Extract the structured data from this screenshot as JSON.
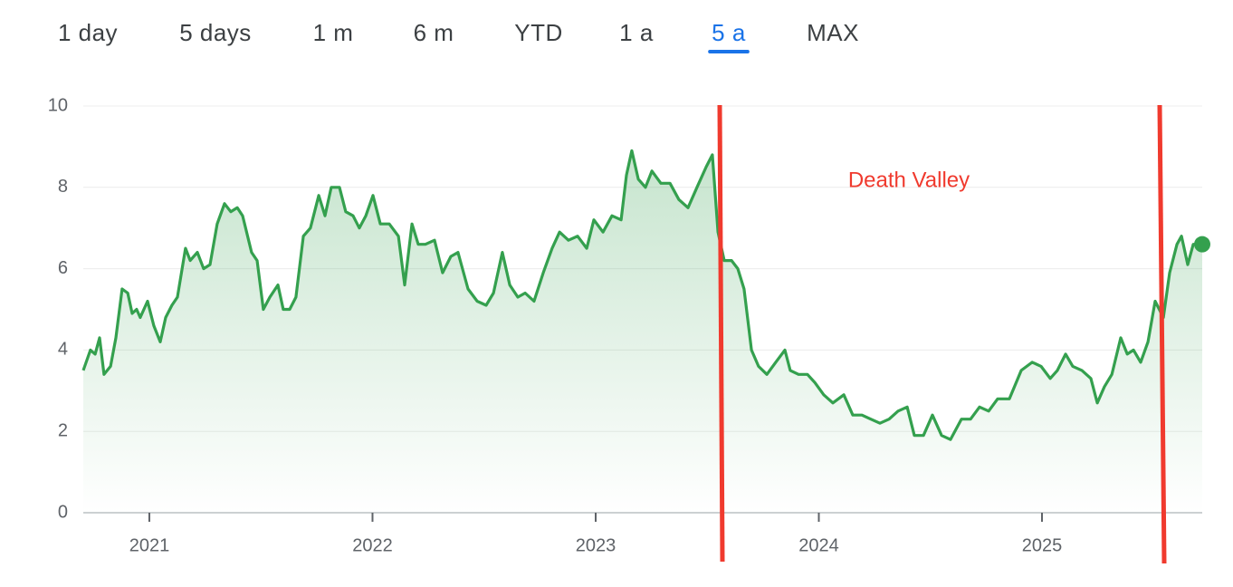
{
  "tabs": [
    "1 day",
    "5 days",
    "1 m",
    "6 m",
    "YTD",
    "1 a",
    "5 a",
    "MAX"
  ],
  "selected_tab": 6,
  "chart_data": {
    "type": "line",
    "annotation": "Death Valley",
    "color": "#34a04e",
    "xlim": [
      2020.704,
      2025.718
    ],
    "xticks": [
      2021,
      2022,
      2023,
      2024,
      2025
    ],
    "ylim": [
      0,
      10
    ],
    "yticks": [
      0,
      2,
      4,
      6,
      8,
      10
    ],
    "grid": true,
    "series": [
      {
        "x": [
          2020.704,
          2020.736,
          2020.757,
          2020.777,
          2020.797,
          2020.826,
          2020.85,
          2020.878,
          2020.903,
          2020.923,
          2020.943,
          2020.959,
          2020.992,
          2021.02,
          2021.049,
          2021.073,
          2021.101,
          2021.126,
          2021.162,
          2021.183,
          2021.215,
          2021.243,
          2021.272,
          2021.304,
          2021.337,
          2021.365,
          2021.394,
          2021.418,
          2021.458,
          2021.483,
          2021.511,
          2021.54,
          2021.576,
          2021.6,
          2021.629,
          2021.657,
          2021.69,
          2021.722,
          2021.759,
          2021.787,
          2021.815,
          2021.852,
          2021.88,
          2021.913,
          2021.941,
          2021.97,
          2022.002,
          2022.035,
          2022.075,
          2022.116,
          2022.144,
          2022.177,
          2022.205,
          2022.237,
          2022.278,
          2022.314,
          2022.351,
          2022.383,
          2022.428,
          2022.469,
          2022.509,
          2022.542,
          2022.582,
          2022.615,
          2022.651,
          2022.684,
          2022.724,
          2022.765,
          2022.805,
          2022.838,
          2022.878,
          2022.919,
          2022.96,
          2022.992,
          2023.033,
          2023.073,
          2023.114,
          2023.138,
          2023.162,
          2023.191,
          2023.223,
          2023.252,
          2023.292,
          2023.333,
          2023.373,
          2023.414,
          2023.454,
          2023.495,
          2023.523,
          2023.548,
          2023.576,
          2023.609,
          2023.637,
          2023.665,
          2023.698,
          2023.73,
          2023.767,
          2023.807,
          2023.848,
          2023.872,
          2023.909,
          2023.949,
          2023.982,
          2024.022,
          2024.063,
          2024.112,
          2024.152,
          2024.193,
          2024.233,
          2024.274,
          2024.315,
          2024.355,
          2024.396,
          2024.428,
          2024.469,
          2024.509,
          2024.55,
          2024.59,
          2024.639,
          2024.68,
          2024.72,
          2024.761,
          2024.801,
          2024.854,
          2024.907,
          2024.956,
          2024.996,
          2025.037,
          2025.069,
          2025.106,
          2025.138,
          2025.179,
          2025.219,
          2025.248,
          2025.28,
          2025.313,
          2025.353,
          2025.382,
          2025.41,
          2025.442,
          2025.475,
          2025.507,
          2025.544,
          2025.572,
          2025.605,
          2025.625,
          2025.653,
          2025.678,
          2025.718
        ],
        "values": [
          3.5,
          4.0,
          3.9,
          4.3,
          3.4,
          3.6,
          4.3,
          5.5,
          5.4,
          4.9,
          5.0,
          4.8,
          5.2,
          4.6,
          4.2,
          4.8,
          5.1,
          5.3,
          6.5,
          6.2,
          6.4,
          6.0,
          6.1,
          7.1,
          7.6,
          7.4,
          7.5,
          7.3,
          6.4,
          6.2,
          5.0,
          5.3,
          5.6,
          5.0,
          5.0,
          5.3,
          6.8,
          7.0,
          7.8,
          7.3,
          8.0,
          8.0,
          7.4,
          7.3,
          7.0,
          7.3,
          7.8,
          7.1,
          7.1,
          6.8,
          5.6,
          7.1,
          6.6,
          6.6,
          6.7,
          5.9,
          6.3,
          6.4,
          5.5,
          5.2,
          5.1,
          5.4,
          6.4,
          5.6,
          5.3,
          5.4,
          5.2,
          5.9,
          6.5,
          6.9,
          6.7,
          6.8,
          6.5,
          7.2,
          6.9,
          7.3,
          7.2,
          8.3,
          8.9,
          8.2,
          8.0,
          8.4,
          8.1,
          8.1,
          7.7,
          7.5,
          8.0,
          8.5,
          8.8,
          6.9,
          6.2,
          6.2,
          6.0,
          5.5,
          4.0,
          3.6,
          3.4,
          3.7,
          4.0,
          3.5,
          3.4,
          3.4,
          3.2,
          2.9,
          2.7,
          2.9,
          2.4,
          2.4,
          2.3,
          2.2,
          2.3,
          2.5,
          2.6,
          1.9,
          1.9,
          2.4,
          1.9,
          1.8,
          2.3,
          2.3,
          2.6,
          2.5,
          2.8,
          2.8,
          3.5,
          3.7,
          3.6,
          3.3,
          3.5,
          3.9,
          3.6,
          3.5,
          3.3,
          2.7,
          3.1,
          3.4,
          4.3,
          3.9,
          4.0,
          3.7,
          4.2,
          5.2,
          4.8,
          5.9,
          6.6,
          6.8,
          6.1,
          6.6,
          6.6
        ]
      }
    ]
  }
}
